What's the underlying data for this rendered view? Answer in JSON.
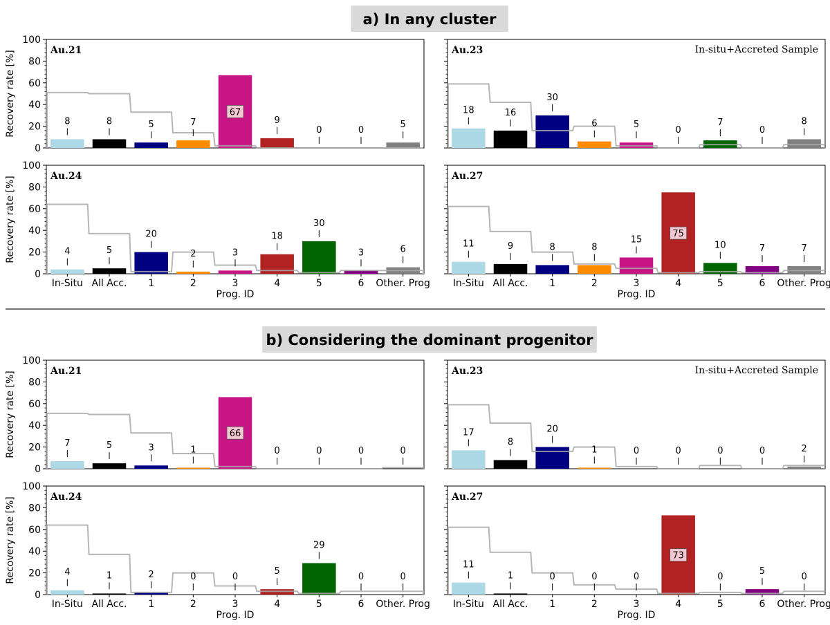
{
  "sections": [
    {
      "title": "a) In any cluster",
      "panels": [
        {
          "name": "Au.21",
          "annotation": "",
          "values": [
            8,
            8,
            5,
            7,
            67,
            9,
            0,
            0,
            5
          ],
          "outline": [
            51,
            50,
            33,
            14,
            2,
            0,
            0,
            0,
            0
          ]
        },
        {
          "name": "Au.23",
          "annotation": "In-situ+Accreted Sample",
          "values": [
            18,
            16,
            30,
            6,
            5,
            0,
            7,
            0,
            8
          ],
          "outline": [
            59,
            42,
            16,
            20,
            2,
            0,
            3,
            0,
            3
          ]
        },
        {
          "name": "Au.24",
          "annotation": "",
          "values": [
            4,
            5,
            20,
            2,
            3,
            18,
            30,
            3,
            6
          ],
          "outline": [
            64,
            37,
            2,
            20,
            8,
            3,
            1,
            3,
            3
          ]
        },
        {
          "name": "Au.27",
          "annotation": "",
          "values": [
            11,
            9,
            8,
            8,
            15,
            75,
            10,
            7,
            7
          ],
          "outline": [
            62,
            39,
            20,
            9,
            5,
            1,
            2,
            1,
            3
          ]
        }
      ]
    },
    {
      "title": "b) Considering the dominant progenitor",
      "panels": [
        {
          "name": "Au.21",
          "annotation": "",
          "values": [
            7,
            5,
            3,
            1,
            66,
            0,
            0,
            0,
            0
          ],
          "outline": [
            51,
            50,
            33,
            14,
            2,
            0,
            0,
            0,
            1
          ]
        },
        {
          "name": "Au.23",
          "annotation": "In-situ+Accreted Sample",
          "values": [
            17,
            8,
            20,
            1,
            0,
            0,
            0,
            0,
            2
          ],
          "outline": [
            59,
            42,
            16,
            20,
            2,
            0,
            3,
            0,
            3
          ]
        },
        {
          "name": "Au.24",
          "annotation": "",
          "values": [
            4,
            1,
            2,
            0,
            0,
            5,
            29,
            0,
            0
          ],
          "outline": [
            64,
            37,
            2,
            20,
            8,
            3,
            1,
            3,
            3
          ]
        },
        {
          "name": "Au.27",
          "annotation": "",
          "values": [
            11,
            1,
            0,
            0,
            0,
            73,
            0,
            5,
            0
          ],
          "outline": [
            62,
            39,
            20,
            9,
            5,
            1,
            2,
            1,
            3
          ]
        }
      ]
    }
  ],
  "chart_data": {
    "type": "bar",
    "categories": [
      "In-Situ",
      "All Acc.",
      "1",
      "2",
      "3",
      "4",
      "5",
      "6",
      "Other. Prog"
    ],
    "xlabel": "Prog. ID",
    "ylabel": "Recovery rate [%]",
    "ylim": [
      0,
      100
    ],
    "yticks": [
      "0",
      "20",
      "40",
      "60",
      "80",
      "100"
    ],
    "highlight_threshold": 50,
    "bar_colors": [
      "#add8e6",
      "#000000",
      "#000080",
      "#ff8c00",
      "#c71585",
      "#b22222",
      "#006400",
      "#800080",
      "#808080"
    ],
    "outline_color": "#a9a9a9",
    "title_bg": "#d9d9d9"
  }
}
